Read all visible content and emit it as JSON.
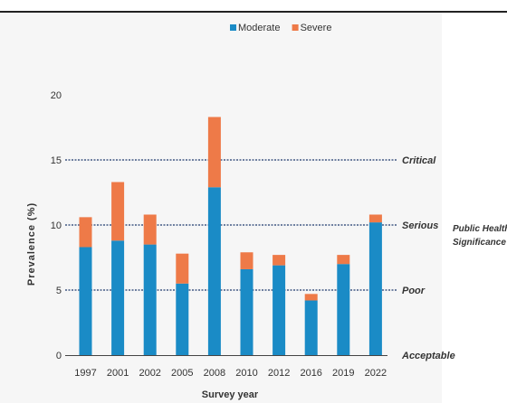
{
  "chart_data": {
    "type": "bar",
    "stacked": true,
    "title": "",
    "xlabel": "Survey year",
    "ylabel": "Prevalence (%)",
    "ylim": [
      0,
      20
    ],
    "yticks": [
      0,
      5,
      10,
      15,
      20
    ],
    "categories": [
      "1997",
      "2001",
      "2002",
      "2005",
      "2008",
      "2010",
      "2012",
      "2016",
      "2019",
      "2022"
    ],
    "series": [
      {
        "name": "Moderate",
        "color": "#1a8bc6",
        "values": [
          8.3,
          8.8,
          8.5,
          5.5,
          12.9,
          6.6,
          6.9,
          4.2,
          7.0,
          10.2
        ]
      },
      {
        "name": "Severe",
        "color": "#ee7a48",
        "values": [
          2.3,
          4.5,
          2.3,
          2.3,
          5.4,
          1.3,
          0.8,
          0.5,
          0.7,
          0.6
        ]
      }
    ],
    "legend": "top",
    "reference_lines": [
      {
        "value": 15,
        "label": "Critical"
      },
      {
        "value": 10,
        "label": "Serious"
      },
      {
        "value": 5,
        "label": "Poor"
      },
      {
        "value": 0,
        "label": "Acceptable"
      }
    ],
    "annotation": [
      "Public Health",
      "Significance"
    ]
  }
}
